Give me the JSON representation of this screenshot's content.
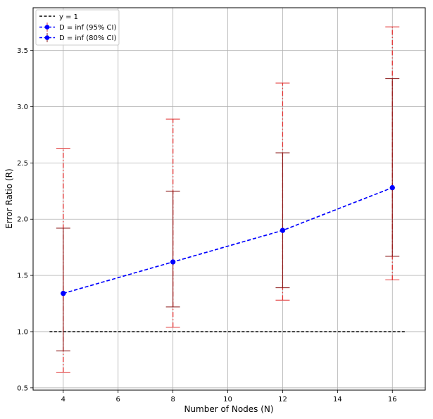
{
  "chart_data": {
    "type": "line",
    "xlabel": "Number of Nodes (N)",
    "ylabel": "Error Ratio (R)",
    "xlim": [
      2.9,
      17.2
    ],
    "ylim": [
      0.48,
      3.88
    ],
    "xticks": [
      4,
      6,
      8,
      10,
      12,
      14,
      16
    ],
    "yticks": [
      0.5,
      1.0,
      1.5,
      2.0,
      2.5,
      3.0,
      3.5
    ],
    "xtick_labels": [
      "4",
      "6",
      "8",
      "10",
      "12",
      "14",
      "16"
    ],
    "ytick_labels": [
      "0.5",
      "1.0",
      "1.5",
      "2.0",
      "2.5",
      "3.0",
      "3.5"
    ],
    "grid": true,
    "legend_position": "top-left",
    "x": [
      4,
      8,
      12,
      16
    ],
    "reference_line": {
      "name": "y = 1",
      "y": 1.0,
      "x_range": [
        3.5,
        16.5
      ],
      "color": "#000000"
    },
    "series": [
      {
        "name": "D = inf (95% CI)",
        "values": [
          1.34,
          1.62,
          1.9,
          2.28
        ],
        "ci_lower": [
          0.64,
          1.04,
          1.28,
          1.46
        ],
        "ci_upper": [
          2.63,
          2.89,
          3.21,
          3.71
        ],
        "line_color": "#0000ff",
        "marker_color": "#0000ff",
        "error_color": "#e03030",
        "error_style": "dashdot"
      },
      {
        "name": "D = inf (80% CI)",
        "values": [
          1.34,
          1.62,
          1.9,
          2.28
        ],
        "ci_lower": [
          0.83,
          1.22,
          1.39,
          1.67
        ],
        "ci_upper": [
          1.92,
          2.25,
          2.59,
          3.25
        ],
        "line_color": "#0000ff",
        "marker_color": "#0000ff",
        "error_color": "#8b1a1a",
        "error_style": "solid"
      }
    ]
  }
}
